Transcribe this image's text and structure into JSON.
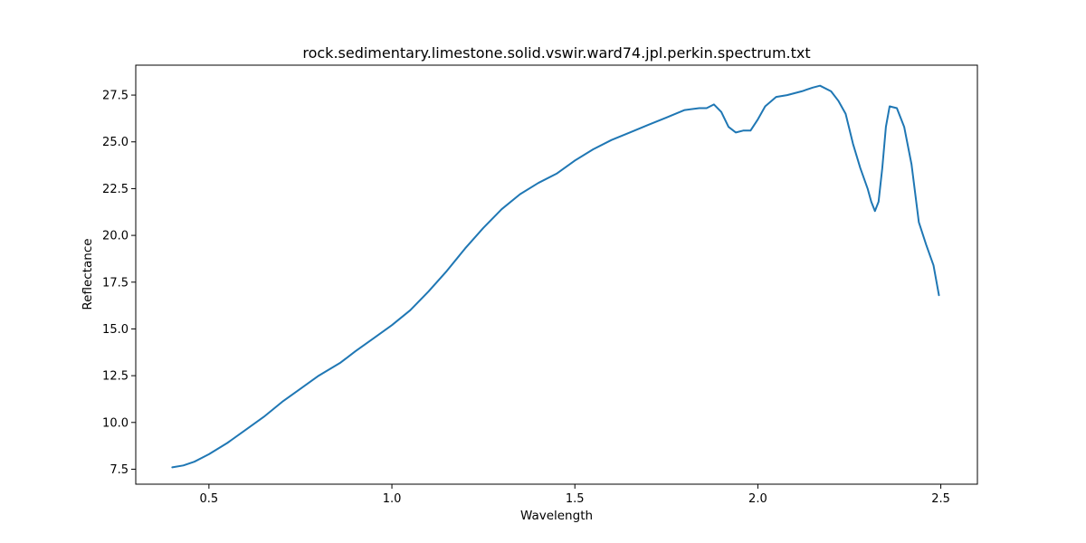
{
  "chart_data": {
    "type": "line",
    "title": "rock.sedimentary.limestone.solid.vswir.ward74.jpl.perkin.spectrum.txt",
    "xlabel": "Wavelength",
    "ylabel": "Reflectance",
    "xlim": [
      0.3,
      2.6
    ],
    "ylim": [
      6.7,
      29.1
    ],
    "xticks": [
      0.5,
      1.0,
      1.5,
      2.0,
      2.5
    ],
    "xtick_labels": [
      "0.5",
      "1.0",
      "1.5",
      "2.0",
      "2.5"
    ],
    "yticks": [
      7.5,
      10.0,
      12.5,
      15.0,
      17.5,
      20.0,
      22.5,
      25.0,
      27.5
    ],
    "ytick_labels": [
      "7.5",
      "10.0",
      "12.5",
      "15.0",
      "17.5",
      "20.0",
      "22.5",
      "25.0",
      "27.5"
    ],
    "grid": false,
    "line_color": "#1f77b4",
    "series": [
      {
        "x": [
          0.4,
          0.43,
          0.46,
          0.5,
          0.55,
          0.6,
          0.65,
          0.7,
          0.75,
          0.8,
          0.86,
          0.9,
          0.95,
          1.0,
          1.05,
          1.1,
          1.15,
          1.2,
          1.25,
          1.3,
          1.35,
          1.4,
          1.45,
          1.5,
          1.55,
          1.6,
          1.65,
          1.7,
          1.75,
          1.8,
          1.84,
          1.86,
          1.88,
          1.9,
          1.92,
          1.94,
          1.96,
          1.98,
          2.0,
          2.02,
          2.05,
          2.08,
          2.12,
          2.15,
          2.17,
          2.2,
          2.22,
          2.24,
          2.26,
          2.28,
          2.3,
          2.31,
          2.32,
          2.33,
          2.34,
          2.35,
          2.36,
          2.38,
          2.4,
          2.42,
          2.44,
          2.46,
          2.48,
          2.495
        ],
        "y": [
          7.6,
          7.7,
          7.9,
          8.3,
          8.9,
          9.6,
          10.3,
          11.1,
          11.8,
          12.5,
          13.2,
          13.8,
          14.5,
          15.2,
          16.0,
          17.0,
          18.1,
          19.3,
          20.4,
          21.4,
          22.2,
          22.8,
          23.3,
          24.0,
          24.6,
          25.1,
          25.5,
          25.9,
          26.3,
          26.7,
          26.8,
          26.8,
          27.0,
          26.6,
          25.8,
          25.5,
          25.6,
          25.6,
          26.2,
          26.9,
          27.4,
          27.5,
          27.7,
          27.9,
          28.0,
          27.7,
          27.2,
          26.5,
          24.9,
          23.6,
          22.5,
          21.8,
          21.3,
          21.8,
          23.6,
          25.8,
          26.9,
          26.8,
          25.8,
          23.8,
          20.7,
          19.5,
          18.4,
          16.8
        ]
      }
    ]
  }
}
